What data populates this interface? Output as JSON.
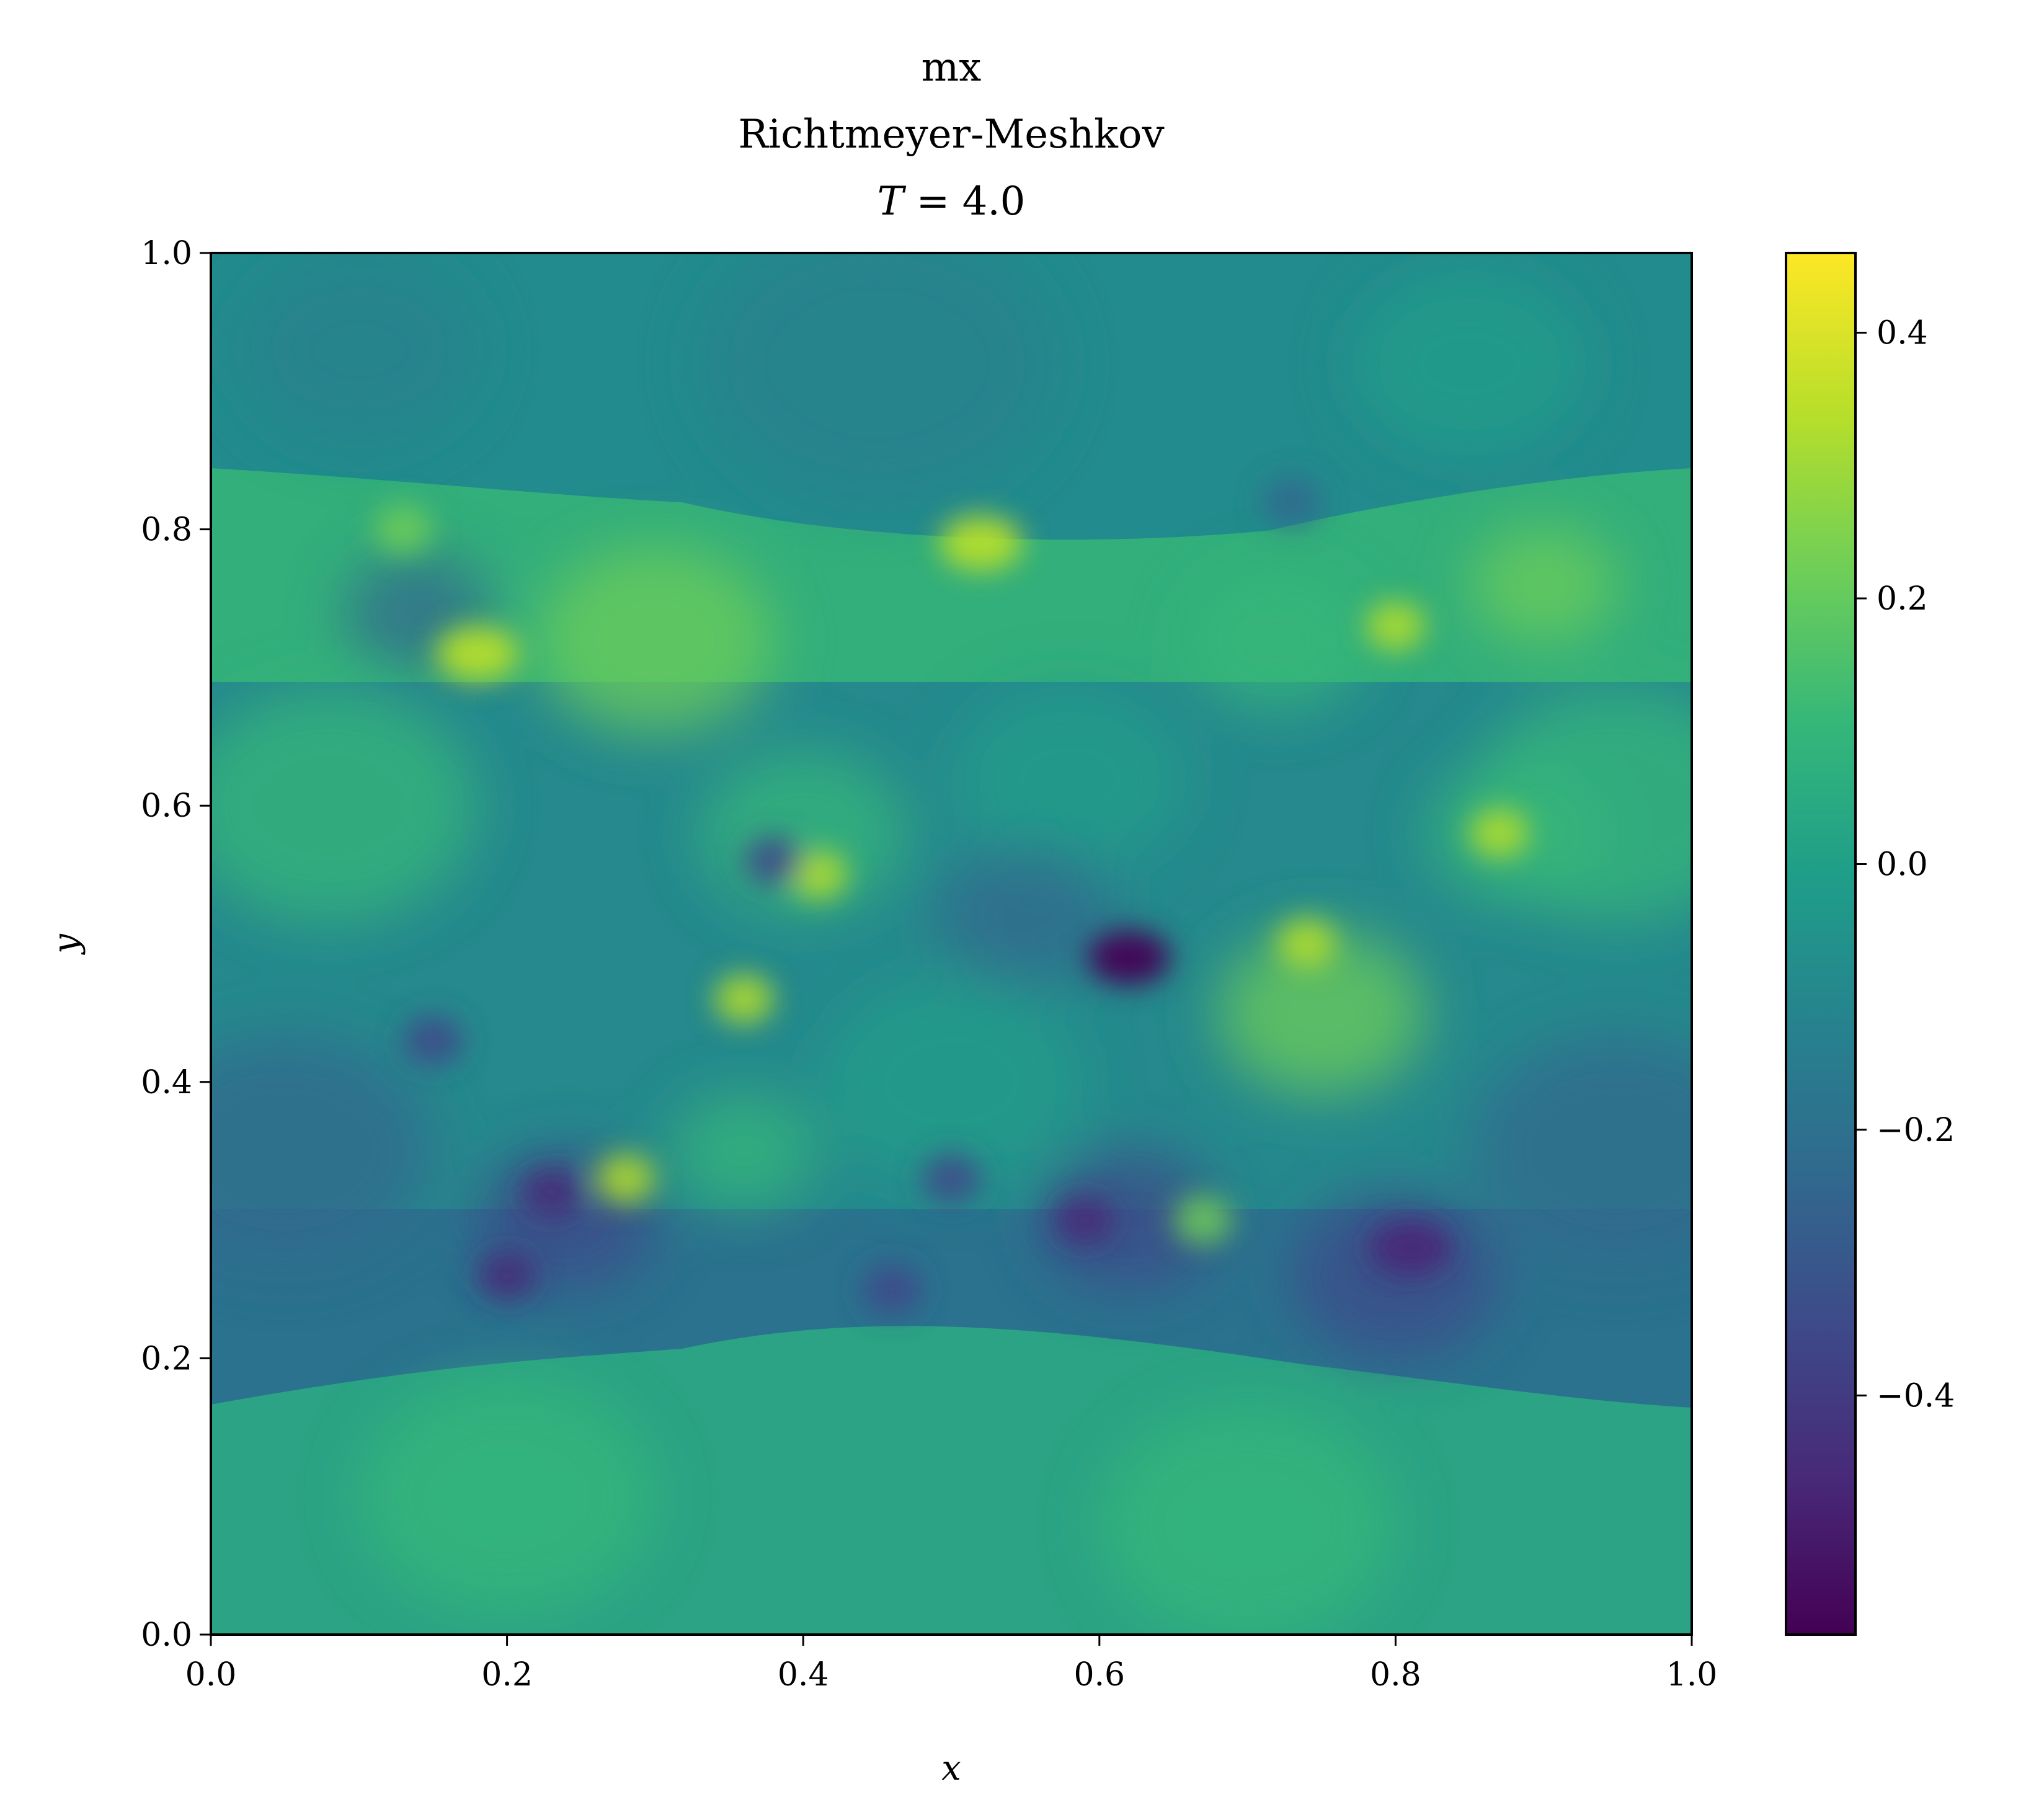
{
  "chart_data": {
    "type": "heatmap",
    "title_lines": [
      "mx",
      "Richtmeyer-Meshkov"
    ],
    "time_label": {
      "symbol": "T",
      "value": "4.0"
    },
    "xlabel": "x",
    "ylabel": "y",
    "xlim": [
      0.0,
      1.0
    ],
    "ylim": [
      0.0,
      1.0
    ],
    "x_ticks": [
      "0.0",
      "0.2",
      "0.4",
      "0.6",
      "0.8",
      "1.0"
    ],
    "y_ticks": [
      "0.0",
      "0.2",
      "0.4",
      "0.6",
      "0.8",
      "1.0"
    ],
    "colorbar": {
      "colormap": "viridis",
      "range": [
        -0.58,
        0.46
      ],
      "ticks": [
        -0.4,
        -0.2,
        0.0,
        0.2,
        0.4
      ],
      "tick_labels": [
        "−0.4",
        "−0.2",
        "0.0",
        "0.2",
        "0.4"
      ]
    },
    "field_description": {
      "interface_bands_y": [
        0.18,
        0.83
      ],
      "notable_extrema": [
        {
          "x": 0.52,
          "y": 0.79,
          "value": 0.4
        },
        {
          "x": 0.18,
          "y": 0.71,
          "value": 0.4
        },
        {
          "x": 0.62,
          "y": 0.49,
          "value": -0.55
        },
        {
          "x": 0.81,
          "y": 0.28,
          "value": -0.5
        }
      ]
    }
  },
  "colors": {
    "viridis": [
      "#440154",
      "#482878",
      "#3e4989",
      "#31688e",
      "#26828e",
      "#1f9e89",
      "#35b779",
      "#6ece58",
      "#b5de2b",
      "#fde725"
    ]
  }
}
